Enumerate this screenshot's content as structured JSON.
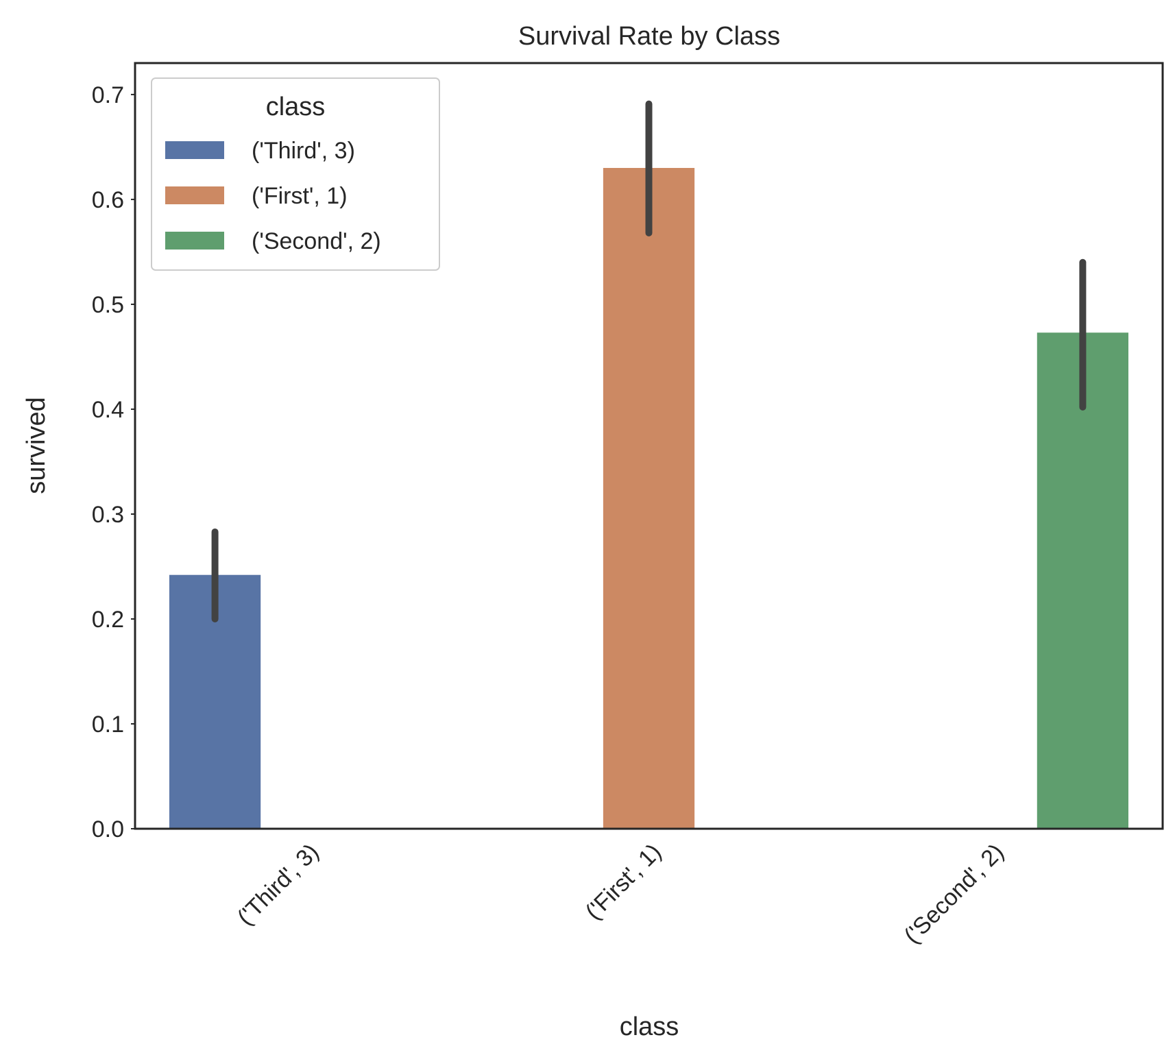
{
  "chart_data": {
    "type": "bar",
    "title": "Survival Rate by Class",
    "xlabel": "class",
    "ylabel": "survived",
    "categories": [
      "('Third', 3)",
      "('First', 1)",
      "('Second', 2)"
    ],
    "series": [
      {
        "name": "('Third', 3)",
        "color": "#5874a5",
        "values": [
          0.242,
          null,
          null
        ],
        "ci": [
          [
            0.2,
            0.283
          ],
          null,
          null
        ]
      },
      {
        "name": "('First', 1)",
        "color": "#cc8963",
        "values": [
          null,
          0.63,
          null
        ],
        "ci": [
          null,
          [
            0.568,
            0.691
          ],
          null
        ]
      },
      {
        "name": "('Second', 2)",
        "color": "#5f9e6e",
        "values": [
          null,
          null,
          0.473
        ],
        "ci": [
          null,
          null,
          [
            0.402,
            0.54
          ]
        ]
      }
    ],
    "ylim": [
      0,
      0.73
    ],
    "yticks": [
      0.0,
      0.1,
      0.2,
      0.3,
      0.4,
      0.5,
      0.6,
      0.7
    ],
    "ytick_labels": [
      "0.0",
      "0.1",
      "0.2",
      "0.3",
      "0.4",
      "0.5",
      "0.6",
      "0.7"
    ],
    "legend": {
      "title": "class",
      "placement": "upper-left"
    },
    "grid": false
  }
}
